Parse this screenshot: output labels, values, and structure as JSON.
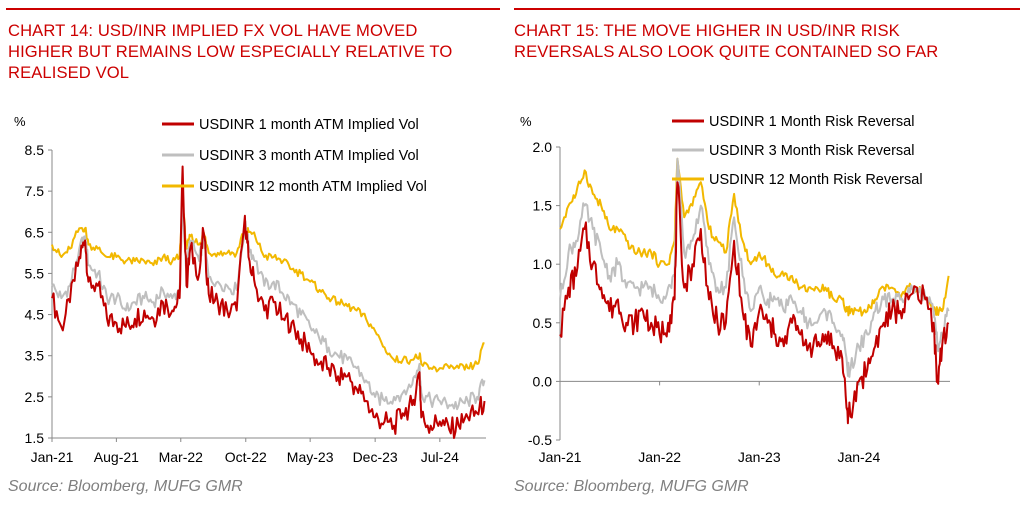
{
  "colors": {
    "accent": "#cc0000",
    "source": "#7f7f7f",
    "axis": "#888888"
  },
  "left": {
    "title_lines": [
      "CHART 14: USD/INR IMPLIED FX VOL HAVE MOVED",
      "HIGHER BUT REMAINS LOW ESPECIALLY RELATIVE TO",
      "REALISED VOL"
    ],
    "source": "Source: Bloomberg, MUFG GMR"
  },
  "right": {
    "title_lines": [
      "CHART 15: THE MOVE HIGHER IN USD/INR RISK",
      "REVERSALS ALSO LOOK QUITE CONTAINED SO FAR"
    ],
    "source": "Source: Bloomberg, MUFG GMR"
  },
  "chart_data": [
    {
      "type": "line",
      "title": "CHART 14: USD/INR IMPLIED FX VOL HAVE MOVED HIGHER BUT REMAINS LOW ESPECIALLY RELATIVE TO REALISED VOL",
      "ylabel": "%",
      "ylim": [
        1.5,
        8.5
      ],
      "yticks": [
        "8.5",
        "7.5",
        "6.5",
        "5.5",
        "4.5",
        "3.5",
        "2.5",
        "1.5"
      ],
      "xlim": [
        "2021-01-01",
        "2024-11-30"
      ],
      "x_tick_labels": [
        "Jan-21",
        "Aug-21",
        "Mar-22",
        "Oct-22",
        "May-23",
        "Dec-23",
        "Jul-24"
      ],
      "x_tick_dates": [
        "2021-01-01",
        "2021-08-01",
        "2022-03-01",
        "2022-10-01",
        "2023-05-01",
        "2023-12-01",
        "2024-07-01"
      ],
      "grid": false,
      "legend_position": "top-right",
      "series": [
        {
          "name": "USDINR 1 month ATM Implied Vol",
          "color": "#c00000",
          "x": [
            "2021-01-01",
            "2021-02-01",
            "2021-03-01",
            "2021-04-01",
            "2021-04-20",
            "2021-05-01",
            "2021-06-01",
            "2021-07-01",
            "2021-08-01",
            "2021-09-01",
            "2021-10-01",
            "2021-11-01",
            "2021-12-01",
            "2022-01-01",
            "2022-02-01",
            "2022-02-25",
            "2022-03-07",
            "2022-03-20",
            "2022-04-01",
            "2022-05-01",
            "2022-05-15",
            "2022-06-01",
            "2022-07-01",
            "2022-08-01",
            "2022-09-01",
            "2022-09-28",
            "2022-10-10",
            "2022-11-01",
            "2022-12-01",
            "2023-01-01",
            "2023-02-01",
            "2023-03-01",
            "2023-04-01",
            "2023-05-01",
            "2023-06-01",
            "2023-07-01",
            "2023-08-01",
            "2023-09-01",
            "2023-10-01",
            "2023-11-01",
            "2023-12-01",
            "2024-01-01",
            "2024-02-01",
            "2024-03-01",
            "2024-04-01",
            "2024-04-25",
            "2024-05-01",
            "2024-06-01",
            "2024-07-01",
            "2024-08-01",
            "2024-09-01",
            "2024-10-01",
            "2024-11-01",
            "2024-11-25"
          ],
          "values": [
            4.9,
            4.2,
            4.8,
            5.9,
            6.3,
            5.3,
            5.2,
            4.4,
            4.3,
            4.2,
            4.4,
            4.6,
            4.4,
            4.8,
            4.6,
            4.9,
            8.1,
            5.2,
            6.1,
            5.5,
            6.5,
            5.0,
            4.8,
            4.6,
            4.6,
            6.9,
            5.9,
            5.2,
            4.6,
            4.8,
            4.4,
            4.3,
            3.9,
            3.6,
            3.3,
            3.2,
            3.0,
            3.0,
            2.7,
            2.4,
            2.0,
            1.9,
            1.8,
            2.1,
            2.3,
            3.1,
            2.0,
            1.8,
            1.9,
            1.7,
            1.8,
            2.0,
            2.1,
            2.4
          ]
        },
        {
          "name": "USDINR 3 month ATM Implied Vol",
          "color": "#bfbfbf",
          "x": [
            "2021-01-01",
            "2021-02-01",
            "2021-03-01",
            "2021-04-01",
            "2021-04-20",
            "2021-05-01",
            "2021-06-01",
            "2021-07-01",
            "2021-08-01",
            "2021-09-01",
            "2021-10-01",
            "2021-11-01",
            "2021-12-01",
            "2022-01-01",
            "2022-02-01",
            "2022-02-25",
            "2022-03-07",
            "2022-03-20",
            "2022-04-01",
            "2022-05-01",
            "2022-05-15",
            "2022-06-01",
            "2022-07-01",
            "2022-08-01",
            "2022-09-01",
            "2022-09-28",
            "2022-10-10",
            "2022-11-01",
            "2022-12-01",
            "2023-01-01",
            "2023-02-01",
            "2023-03-01",
            "2023-04-01",
            "2023-05-01",
            "2023-06-01",
            "2023-07-01",
            "2023-08-01",
            "2023-09-01",
            "2023-10-01",
            "2023-11-01",
            "2023-12-01",
            "2024-01-01",
            "2024-02-01",
            "2024-03-01",
            "2024-04-01",
            "2024-04-25",
            "2024-05-01",
            "2024-06-01",
            "2024-07-01",
            "2024-08-01",
            "2024-09-01",
            "2024-10-01",
            "2024-11-01",
            "2024-11-25"
          ],
          "values": [
            5.2,
            4.9,
            5.2,
            6.1,
            6.4,
            5.7,
            5.5,
            4.9,
            4.9,
            4.6,
            4.8,
            4.9,
            4.8,
            5.1,
            4.9,
            5.1,
            7.1,
            5.6,
            6.3,
            5.8,
            6.4,
            5.4,
            5.3,
            5.2,
            5.1,
            6.7,
            6.2,
            5.8,
            5.2,
            5.3,
            5.0,
            4.8,
            4.5,
            4.2,
            3.9,
            3.7,
            3.5,
            3.4,
            3.2,
            2.9,
            2.5,
            2.4,
            2.5,
            2.6,
            2.8,
            3.3,
            2.6,
            2.4,
            2.4,
            2.3,
            2.3,
            2.4,
            2.5,
            2.9
          ]
        },
        {
          "name": "USDINR 12 month ATM Implied Vol",
          "color": "#f2b800",
          "x": [
            "2021-01-01",
            "2021-02-01",
            "2021-03-01",
            "2021-04-01",
            "2021-04-20",
            "2021-05-01",
            "2021-06-01",
            "2021-07-01",
            "2021-08-01",
            "2021-09-01",
            "2021-10-01",
            "2021-11-01",
            "2021-12-01",
            "2022-01-01",
            "2022-02-01",
            "2022-02-25",
            "2022-03-07",
            "2022-03-20",
            "2022-04-01",
            "2022-05-01",
            "2022-05-15",
            "2022-06-01",
            "2022-07-01",
            "2022-08-01",
            "2022-09-01",
            "2022-09-28",
            "2022-10-10",
            "2022-11-01",
            "2022-12-01",
            "2023-01-01",
            "2023-02-01",
            "2023-03-01",
            "2023-04-01",
            "2023-05-01",
            "2023-06-01",
            "2023-07-01",
            "2023-08-01",
            "2023-09-01",
            "2023-10-01",
            "2023-11-01",
            "2023-12-01",
            "2024-01-01",
            "2024-02-01",
            "2024-03-01",
            "2024-04-01",
            "2024-04-25",
            "2024-05-01",
            "2024-06-01",
            "2024-07-01",
            "2024-08-01",
            "2024-09-01",
            "2024-10-01",
            "2024-11-01",
            "2024-11-25"
          ],
          "values": [
            6.2,
            5.9,
            6.1,
            6.6,
            6.6,
            6.2,
            6.1,
            5.9,
            5.9,
            5.8,
            5.8,
            5.8,
            5.7,
            5.9,
            5.8,
            5.9,
            7.2,
            6.1,
            6.4,
            6.2,
            6.5,
            6.0,
            6.0,
            6.0,
            6.0,
            6.6,
            6.5,
            6.4,
            5.9,
            5.9,
            5.8,
            5.6,
            5.5,
            5.3,
            5.1,
            4.9,
            4.8,
            4.7,
            4.6,
            4.4,
            4.1,
            3.7,
            3.4,
            3.4,
            3.4,
            3.5,
            3.3,
            3.2,
            3.2,
            3.2,
            3.2,
            3.2,
            3.3,
            3.8
          ]
        }
      ]
    },
    {
      "type": "line",
      "title": "CHART 15: THE MOVE HIGHER IN USD/INR RISK REVERSALS ALSO LOOK QUITE CONTAINED SO FAR",
      "ylabel": "%",
      "ylim": [
        -0.5,
        2.0
      ],
      "yticks": [
        "2.0",
        "1.5",
        "1.0",
        "0.5",
        "0.0",
        "-0.5"
      ],
      "xlim": [
        "2021-01-01",
        "2024-11-30"
      ],
      "x_tick_labels": [
        "Jan-21",
        "Jan-22",
        "Jan-23",
        "Jan-24"
      ],
      "x_tick_dates": [
        "2021-01-01",
        "2022-01-01",
        "2023-01-01",
        "2024-01-01"
      ],
      "grid": false,
      "legend_position": "top-right",
      "series": [
        {
          "name": "USDINR 1 Month Risk Reversal",
          "color": "#c00000",
          "x": [
            "2021-01-01",
            "2021-02-01",
            "2021-03-01",
            "2021-04-01",
            "2021-05-01",
            "2021-06-01",
            "2021-07-01",
            "2021-08-01",
            "2021-09-01",
            "2021-10-01",
            "2021-11-01",
            "2021-12-01",
            "2022-01-01",
            "2022-02-01",
            "2022-02-25",
            "2022-03-07",
            "2022-04-01",
            "2022-05-01",
            "2022-06-01",
            "2022-07-01",
            "2022-08-01",
            "2022-09-01",
            "2022-10-01",
            "2022-11-01",
            "2022-12-01",
            "2023-01-01",
            "2023-02-01",
            "2023-03-01",
            "2023-04-01",
            "2023-05-01",
            "2023-06-01",
            "2023-07-01",
            "2023-08-01",
            "2023-09-01",
            "2023-10-01",
            "2023-11-01",
            "2023-11-20",
            "2023-12-01",
            "2024-01-01",
            "2024-02-01",
            "2024-03-01",
            "2024-04-01",
            "2024-05-01",
            "2024-06-01",
            "2024-07-01",
            "2024-08-01",
            "2024-09-01",
            "2024-10-01",
            "2024-10-15",
            "2024-11-01",
            "2024-11-25"
          ],
          "values": [
            0.4,
            0.8,
            0.9,
            1.3,
            1.0,
            0.8,
            0.6,
            0.7,
            0.5,
            0.5,
            0.6,
            0.5,
            0.4,
            0.5,
            0.7,
            1.7,
            0.8,
            1.0,
            1.3,
            0.7,
            0.5,
            0.5,
            1.2,
            0.6,
            0.3,
            0.6,
            0.5,
            0.4,
            0.3,
            0.5,
            0.4,
            0.3,
            0.3,
            0.4,
            0.3,
            0.2,
            -0.25,
            -0.3,
            0.0,
            0.1,
            0.3,
            0.5,
            0.6,
            0.6,
            0.7,
            0.8,
            0.7,
            0.5,
            0.0,
            0.3,
            0.5
          ]
        },
        {
          "name": "USDINR 3 Month Risk Reversal",
          "color": "#bfbfbf",
          "x": [
            "2021-01-01",
            "2021-02-01",
            "2021-03-01",
            "2021-04-01",
            "2021-05-01",
            "2021-06-01",
            "2021-07-01",
            "2021-08-01",
            "2021-09-01",
            "2021-10-01",
            "2021-11-01",
            "2021-12-01",
            "2022-01-01",
            "2022-02-01",
            "2022-02-25",
            "2022-03-07",
            "2022-04-01",
            "2022-05-01",
            "2022-06-01",
            "2022-07-01",
            "2022-08-01",
            "2022-09-01",
            "2022-10-01",
            "2022-11-01",
            "2022-12-01",
            "2023-01-01",
            "2023-02-01",
            "2023-03-01",
            "2023-04-01",
            "2023-05-01",
            "2023-06-01",
            "2023-07-01",
            "2023-08-01",
            "2023-09-01",
            "2023-10-01",
            "2023-11-01",
            "2023-11-20",
            "2023-12-01",
            "2024-01-01",
            "2024-02-01",
            "2024-03-01",
            "2024-04-01",
            "2024-05-01",
            "2024-06-01",
            "2024-07-01",
            "2024-08-01",
            "2024-09-01",
            "2024-10-01",
            "2024-10-15",
            "2024-11-01",
            "2024-11-25"
          ],
          "values": [
            0.7,
            1.1,
            1.2,
            1.5,
            1.3,
            1.1,
            0.9,
            1.0,
            0.8,
            0.8,
            0.8,
            0.8,
            0.7,
            0.8,
            0.9,
            1.9,
            1.1,
            1.2,
            1.5,
            1.0,
            0.8,
            0.8,
            1.4,
            0.9,
            0.6,
            0.8,
            0.7,
            0.7,
            0.6,
            0.7,
            0.6,
            0.5,
            0.5,
            0.6,
            0.5,
            0.4,
            0.1,
            0.1,
            0.3,
            0.4,
            0.6,
            0.7,
            0.7,
            0.7,
            0.8,
            0.8,
            0.7,
            0.6,
            0.3,
            0.4,
            0.6
          ]
        },
        {
          "name": "USDINR 12 Month Risk Reversal",
          "color": "#f2b800",
          "x": [
            "2021-01-01",
            "2021-02-01",
            "2021-03-01",
            "2021-04-01",
            "2021-05-01",
            "2021-06-01",
            "2021-07-01",
            "2021-08-01",
            "2021-09-01",
            "2021-10-01",
            "2021-11-01",
            "2021-12-01",
            "2022-01-01",
            "2022-02-01",
            "2022-02-25",
            "2022-03-07",
            "2022-04-01",
            "2022-05-01",
            "2022-06-01",
            "2022-07-01",
            "2022-08-01",
            "2022-09-01",
            "2022-10-01",
            "2022-11-01",
            "2022-12-01",
            "2023-01-01",
            "2023-02-01",
            "2023-03-01",
            "2023-04-01",
            "2023-05-01",
            "2023-06-01",
            "2023-07-01",
            "2023-08-01",
            "2023-09-01",
            "2023-10-01",
            "2023-11-01",
            "2023-11-20",
            "2023-12-01",
            "2024-01-01",
            "2024-02-01",
            "2024-03-01",
            "2024-04-01",
            "2024-05-01",
            "2024-06-01",
            "2024-07-01",
            "2024-08-01",
            "2024-09-01",
            "2024-10-01",
            "2024-10-15",
            "2024-11-01",
            "2024-11-25"
          ],
          "values": [
            1.3,
            1.5,
            1.6,
            1.8,
            1.6,
            1.5,
            1.3,
            1.3,
            1.2,
            1.1,
            1.1,
            1.1,
            1.0,
            1.0,
            1.2,
            1.9,
            1.4,
            1.5,
            1.7,
            1.3,
            1.2,
            1.1,
            1.6,
            1.2,
            1.0,
            1.1,
            1.0,
            0.9,
            0.9,
            0.9,
            0.8,
            0.8,
            0.8,
            0.8,
            0.7,
            0.7,
            0.6,
            0.6,
            0.6,
            0.6,
            0.7,
            0.8,
            0.8,
            0.7,
            0.8,
            0.8,
            0.7,
            0.6,
            0.6,
            0.6,
            0.9
          ]
        }
      ]
    }
  ]
}
